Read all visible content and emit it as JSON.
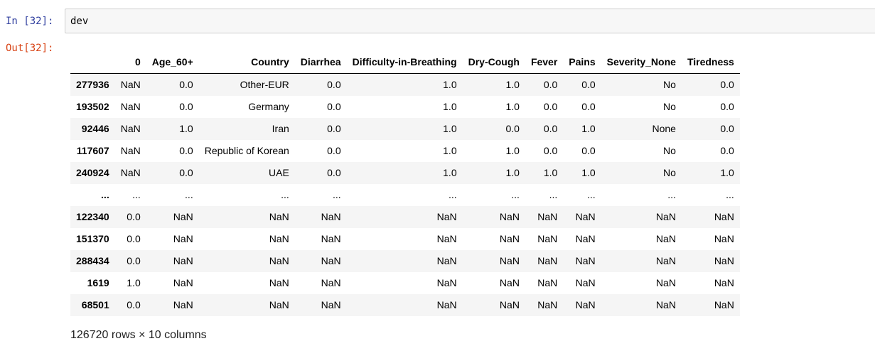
{
  "cell": {
    "in_prompt": "In [32]:",
    "out_prompt": "Out[32]:",
    "code": "dev"
  },
  "dataframe": {
    "columns": [
      "",
      "0",
      "Age_60+",
      "Country",
      "Diarrhea",
      "Difficulty-in-Breathing",
      "Dry-Cough",
      "Fever",
      "Pains",
      "Severity_None",
      "Tiredness"
    ],
    "rows": [
      [
        "277936",
        "NaN",
        "0.0",
        "Other-EUR",
        "0.0",
        "1.0",
        "1.0",
        "0.0",
        "0.0",
        "No",
        "0.0"
      ],
      [
        "193502",
        "NaN",
        "0.0",
        "Germany",
        "0.0",
        "1.0",
        "1.0",
        "0.0",
        "0.0",
        "No",
        "0.0"
      ],
      [
        "92446",
        "NaN",
        "1.0",
        "Iran",
        "0.0",
        "1.0",
        "0.0",
        "0.0",
        "1.0",
        "None",
        "0.0"
      ],
      [
        "117607",
        "NaN",
        "0.0",
        "Republic of Korean",
        "0.0",
        "1.0",
        "1.0",
        "0.0",
        "0.0",
        "No",
        "0.0"
      ],
      [
        "240924",
        "NaN",
        "0.0",
        "UAE",
        "0.0",
        "1.0",
        "1.0",
        "1.0",
        "1.0",
        "No",
        "1.0"
      ],
      [
        "...",
        "...",
        "...",
        "...",
        "...",
        "...",
        "...",
        "...",
        "...",
        "...",
        "..."
      ],
      [
        "122340",
        "0.0",
        "NaN",
        "NaN",
        "NaN",
        "NaN",
        "NaN",
        "NaN",
        "NaN",
        "NaN",
        "NaN"
      ],
      [
        "151370",
        "0.0",
        "NaN",
        "NaN",
        "NaN",
        "NaN",
        "NaN",
        "NaN",
        "NaN",
        "NaN",
        "NaN"
      ],
      [
        "288434",
        "0.0",
        "NaN",
        "NaN",
        "NaN",
        "NaN",
        "NaN",
        "NaN",
        "NaN",
        "NaN",
        "NaN"
      ],
      [
        "1619",
        "1.0",
        "NaN",
        "NaN",
        "NaN",
        "NaN",
        "NaN",
        "NaN",
        "NaN",
        "NaN",
        "NaN"
      ],
      [
        "68501",
        "0.0",
        "NaN",
        "NaN",
        "NaN",
        "NaN",
        "NaN",
        "NaN",
        "NaN",
        "NaN",
        "NaN"
      ]
    ],
    "summary": "126720 rows × 10 columns"
  }
}
